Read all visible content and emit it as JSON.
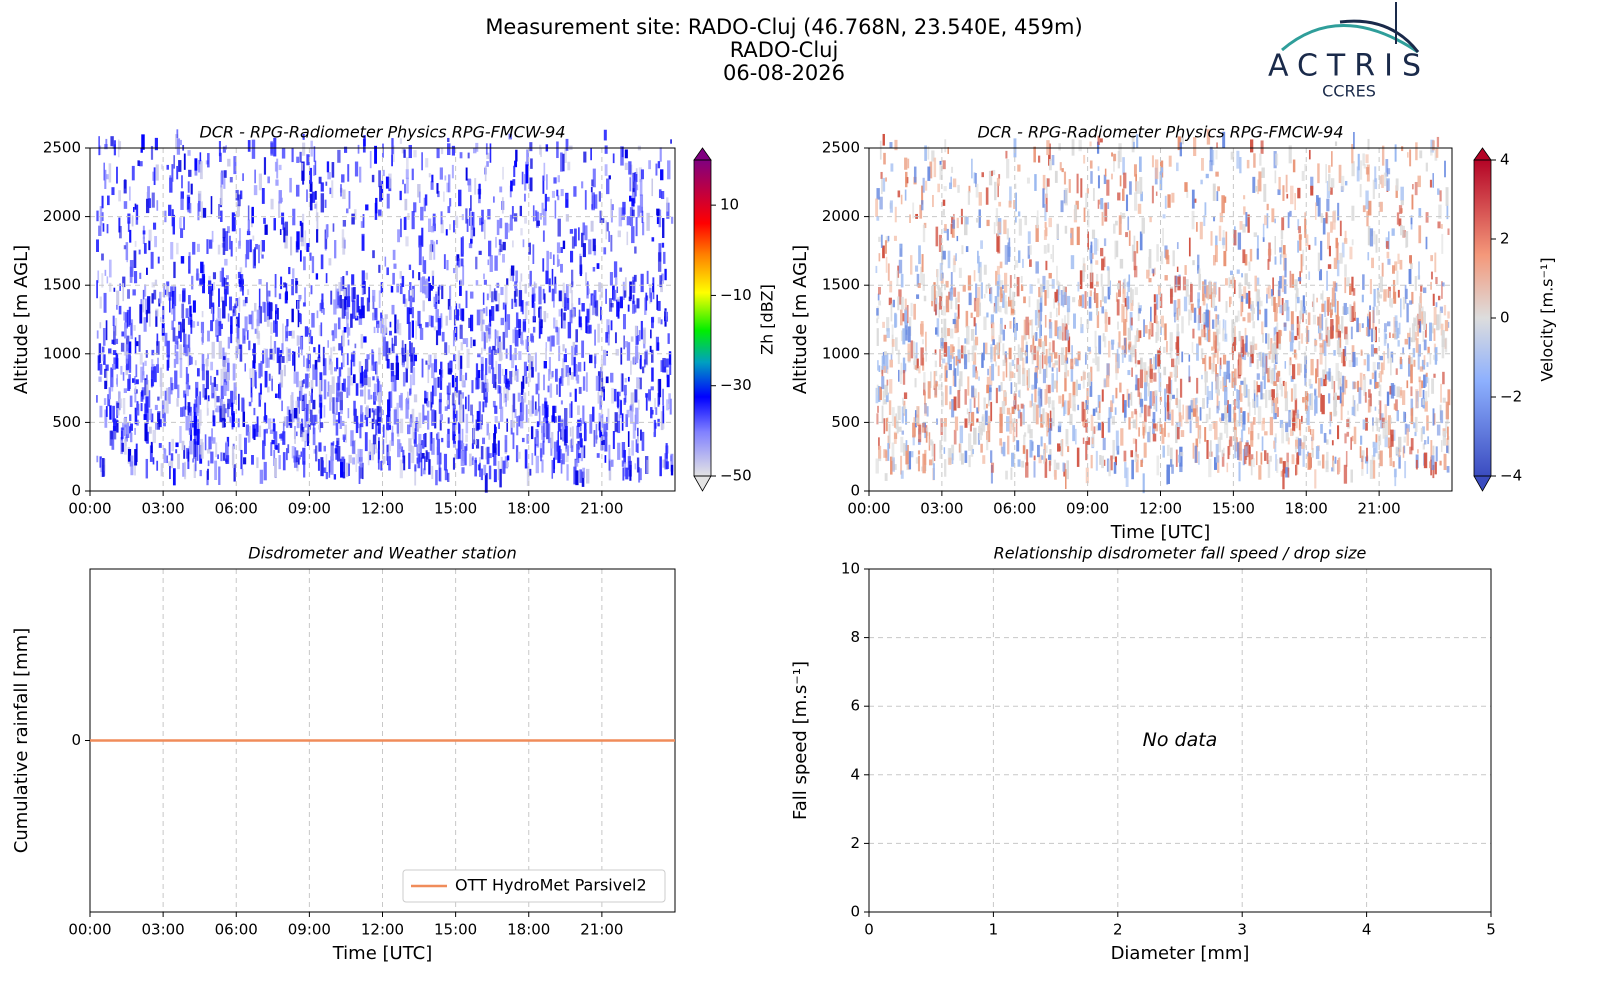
{
  "header": {
    "title": [
      "Measurement site: RADO-Cluj (46.768N, 23.540E, 459m)",
      "RADO-Cluj",
      "06-08-2026"
    ],
    "logo": "ACTRIS",
    "logo_sub": "CCRES"
  },
  "chart_data": [
    {
      "type": "heatmap",
      "title": "DCR - RPG-Radiometer Physics RPG-FMCW-94",
      "ylabel": "Altitude [m AGL]",
      "xlim": [
        0,
        24
      ],
      "xticks": [
        {
          "value": 0,
          "label": "00:00"
        },
        {
          "value": 3,
          "label": "03:00"
        },
        {
          "value": 6,
          "label": "06:00"
        },
        {
          "value": 9,
          "label": "09:00"
        },
        {
          "value": 12,
          "label": "12:00"
        },
        {
          "value": 15,
          "label": "15:00"
        },
        {
          "value": 18,
          "label": "18:00"
        },
        {
          "value": 21,
          "label": "21:00"
        }
      ],
      "ylim": [
        0,
        2500
      ],
      "yticks": [
        0,
        500,
        1000,
        1500,
        2000,
        2500
      ],
      "grid": true,
      "colorbar": {
        "label": "Zh [dBZ]",
        "lim": [
          -50,
          20
        ],
        "ticks": [
          {
            "value": -50,
            "label": "−50"
          },
          {
            "value": -30,
            "label": "−30"
          },
          {
            "value": -10,
            "label": "−10"
          },
          10
        ]
      }
    },
    {
      "type": "heatmap",
      "title": "DCR - RPG-Radiometer Physics RPG-FMCW-94",
      "ylabel": "Altitude [m AGL]",
      "xlabel": "Time [UTC]",
      "xlim": [
        0,
        24
      ],
      "xticks": [
        {
          "value": 0,
          "label": "00:00"
        },
        {
          "value": 3,
          "label": "03:00"
        },
        {
          "value": 6,
          "label": "06:00"
        },
        {
          "value": 9,
          "label": "09:00"
        },
        {
          "value": 12,
          "label": "12:00"
        },
        {
          "value": 15,
          "label": "15:00"
        },
        {
          "value": 18,
          "label": "18:00"
        },
        {
          "value": 21,
          "label": "21:00"
        }
      ],
      "ylim": [
        0,
        2500
      ],
      "yticks": [
        0,
        500,
        1000,
        1500,
        2000,
        2500
      ],
      "grid": true,
      "colorbar": {
        "label": "Velocity [m.s⁻¹]",
        "lim": [
          -4,
          4
        ],
        "ticks": [
          {
            "value": -4,
            "label": "−4"
          },
          {
            "value": -2,
            "label": "−2"
          },
          0,
          2,
          4
        ]
      }
    },
    {
      "type": "line",
      "title": "Disdrometer and Weather station",
      "ylabel": "Cumulative rainfall [mm]",
      "xlabel": "Time [UTC]",
      "xlim": [
        0,
        24
      ],
      "xticks": [
        {
          "value": 0,
          "label": "00:00"
        },
        {
          "value": 3,
          "label": "03:00"
        },
        {
          "value": 6,
          "label": "06:00"
        },
        {
          "value": 9,
          "label": "09:00"
        },
        {
          "value": 12,
          "label": "12:00"
        },
        {
          "value": 15,
          "label": "15:00"
        },
        {
          "value": 18,
          "label": "18:00"
        },
        {
          "value": 21,
          "label": "21:00"
        }
      ],
      "ylim": [
        -0.055,
        0.055
      ],
      "yticks": [
        0
      ],
      "grid": true,
      "legend": "lower right",
      "series": [
        {
          "name": "OTT HydroMet Parsivel2",
          "color": "#f08c5a",
          "x": [
            0,
            24
          ],
          "values": [
            0,
            0
          ]
        }
      ]
    },
    {
      "type": "scatter",
      "title": "Relationship disdrometer fall speed / drop size",
      "ylabel": "Fall speed [m.s⁻¹]",
      "xlabel": "Diameter [mm]",
      "xlim": [
        0,
        5
      ],
      "xticks": [
        0,
        1,
        2,
        3,
        4,
        5
      ],
      "ylim": [
        0,
        10
      ],
      "yticks": [
        0,
        2,
        4,
        6,
        8,
        10
      ],
      "grid": true,
      "annotation": "No data"
    }
  ]
}
